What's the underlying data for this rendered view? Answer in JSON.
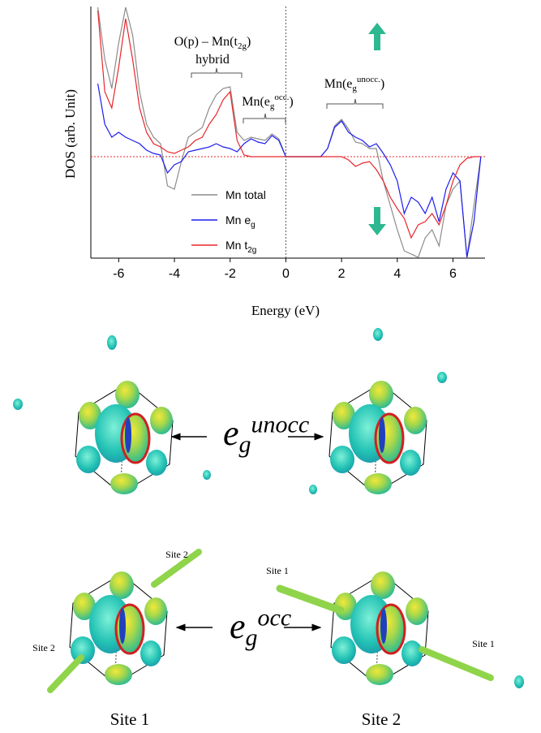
{
  "chart_data": {
    "type": "line",
    "y_label": "DOS (arb. Unit)",
    "x_label": "Energy (eV)",
    "xlim": [
      -7,
      7.15
    ],
    "ylim": [
      -6.25,
      9.25
    ],
    "xticks": [
      -6,
      -4,
      -2,
      0,
      2,
      4,
      6
    ],
    "vlines": [
      0
    ],
    "annotations": [
      {
        "base": "O(p) – Mn(t",
        "sub": "2g",
        "tail": ")"
      },
      {
        "base": "hybrid"
      },
      {
        "base": "Mn(e",
        "sub": "g",
        "sup": "occ.",
        "tail": ")"
      },
      {
        "base": "Mn(e",
        "sub": "g",
        "sup": "unocc.",
        "tail": ")"
      }
    ],
    "x": [
      -6.75,
      -6.5,
      -6.25,
      -6,
      -5.75,
      -5.5,
      -5.25,
      -5,
      -4.75,
      -4.5,
      -4.25,
      -4,
      -3.75,
      -3.5,
      -3.25,
      -3,
      -2.75,
      -2.5,
      -2.25,
      -2,
      -1.75,
      -1.5,
      -1.25,
      -1,
      -0.75,
      -0.5,
      -0.25,
      0,
      0.25,
      0.5,
      0.75,
      1,
      1.25,
      1.5,
      1.75,
      2,
      2.25,
      2.5,
      2.75,
      3,
      3.25,
      3.5,
      3.75,
      4,
      4.25,
      4.5,
      4.75,
      5,
      5.25,
      5.5,
      5.75,
      6,
      6.25,
      6.5,
      6.75,
      7
    ],
    "series": [
      {
        "name": "Mn total",
        "color": "#8c8c8c",
        "values": [
          9.2,
          6,
          4.2,
          7,
          9.2,
          7.5,
          4,
          2,
          1.2,
          0.8,
          -1.8,
          -2,
          -0.3,
          1.2,
          1.5,
          1.8,
          3,
          3.8,
          4.2,
          4.3,
          1.5,
          1,
          1.2,
          1.1,
          1,
          1.4,
          1.1,
          0,
          0,
          0,
          0,
          0,
          0,
          0.5,
          1.9,
          2.3,
          1.7,
          0.9,
          0.8,
          0.5,
          0.5,
          -1.5,
          -3,
          -4.5,
          -5.8,
          -6,
          -6.2,
          -5,
          -4.5,
          -5.5,
          -3,
          -2,
          -1.5,
          -6.2,
          -3,
          0
        ]
      },
      {
        "name": "Mn e",
        "name_sub": "g",
        "color": "#1c1cf0",
        "values": [
          4.5,
          2,
          1.2,
          1.5,
          1.2,
          1,
          0.8,
          0.4,
          0.2,
          0.1,
          -1,
          -0.5,
          -0.3,
          0.3,
          0.4,
          0.5,
          0.6,
          0.8,
          0.6,
          0.5,
          0.3,
          0.8,
          1.1,
          0.9,
          0.8,
          1.3,
          1,
          0,
          0,
          0,
          0,
          0,
          0,
          0.5,
          1.8,
          2.2,
          1.5,
          1.2,
          1,
          0.6,
          0.8,
          0.2,
          -0.5,
          -1.5,
          -3.5,
          -2.5,
          -2.8,
          -3.5,
          -2.5,
          -4,
          -2,
          -1,
          -1.5,
          -6.2,
          -4,
          0
        ]
      },
      {
        "name": "Mn t",
        "name_sub": "2g",
        "color": "#e8262a",
        "values": [
          9,
          4,
          3,
          5.5,
          8.5,
          6,
          3,
          1.5,
          0.8,
          0.6,
          0.3,
          0.2,
          0.4,
          0.6,
          1,
          1.2,
          2,
          2.6,
          3.5,
          4,
          1,
          0.1,
          0,
          0,
          0,
          0,
          0,
          0,
          0,
          0,
          0,
          0,
          0,
          0,
          0,
          0,
          -0.2,
          -0.6,
          -0.4,
          -0.3,
          -0.8,
          -1.5,
          -2.5,
          -3.2,
          -3.8,
          -5,
          -4.2,
          -4,
          -3.5,
          -4.2,
          -3,
          -1.5,
          -0.5,
          -0.1,
          0,
          0
        ]
      }
    ]
  },
  "orbitals": {
    "unocc_label": {
      "base": "e",
      "sub": "g",
      "sup": "unocc"
    },
    "occ_label": {
      "base": "e",
      "sub": "g",
      "sup": "occ"
    },
    "site_labels": [
      "Site 1",
      "Site 2"
    ],
    "inline_labels": [
      "Site 2",
      "Site 2",
      "Site 1",
      "Site 1"
    ]
  }
}
